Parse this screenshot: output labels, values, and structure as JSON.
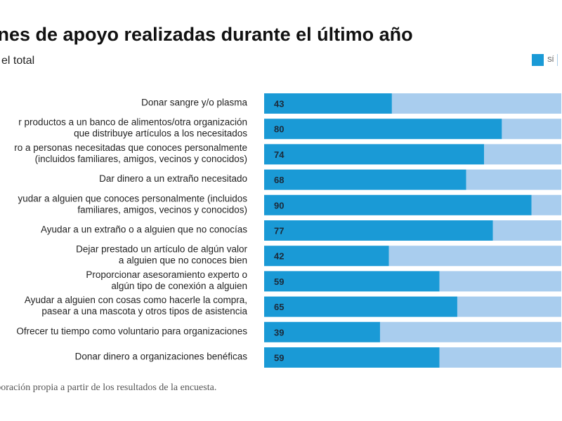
{
  "page": {
    "title": "ones de apoyo realizadas durante el último año",
    "subtitle": "el total",
    "legend": [
      {
        "label": "SÍ",
        "color": "#1a9ad6"
      },
      {
        "label": "",
        "color": "#a9cdee"
      }
    ],
    "source": "aboración propia a partir de los resultados de la encuesta."
  },
  "chart_data": {
    "type": "bar",
    "orientation": "horizontal",
    "stacked": true,
    "xlim": [
      0,
      100
    ],
    "categories": [
      [
        "Donar sangre y/o plasma"
      ],
      [
        "r productos a un banco de alimentos/otra organización",
        "que distribuye artículos a los necesitados"
      ],
      [
        "ro a personas necesitadas que conoces personalmente",
        "(incluidos familiares, amigos, vecinos y conocidos)"
      ],
      [
        "Dar dinero a un extraño necesitado"
      ],
      [
        "yudar a alguien que conoces personalmente (incluidos",
        "familiares, amigos, vecinos y conocidos)"
      ],
      [
        "Ayudar a un extraño o a alguien que no conocías"
      ],
      [
        "Dejar prestado un artículo de algún valor",
        "a alguien que no conoces bien"
      ],
      [
        "Proporcionar asesoramiento experto o",
        "algún tipo de conexión a alguien"
      ],
      [
        "Ayudar a alguien con cosas como hacerle la compra,",
        "pasear a una mascota y otros tipos de asistencia"
      ],
      [
        "Ofrecer tu tiempo como voluntario para organizaciones"
      ],
      [
        "Donar dinero a organizaciones benéficas"
      ]
    ],
    "series": [
      {
        "name": "SÍ",
        "color": "#1a9ad6",
        "values": [
          43,
          80,
          74,
          68,
          90,
          77,
          42,
          59,
          65,
          39,
          59
        ]
      },
      {
        "name": "",
        "color": "#a9cdee",
        "values": [
          57,
          20,
          26,
          32,
          10,
          23,
          58,
          41,
          35,
          61,
          41
        ]
      }
    ]
  }
}
